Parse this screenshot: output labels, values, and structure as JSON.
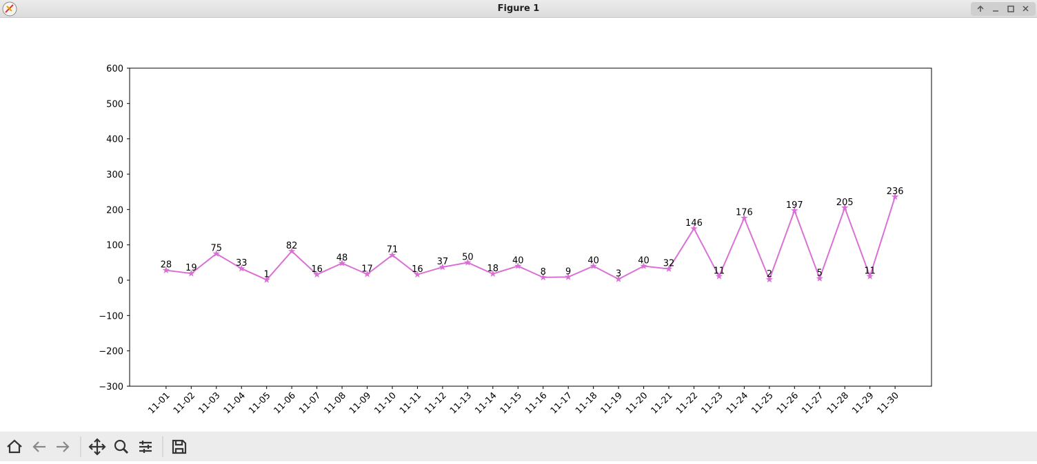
{
  "window": {
    "title": "Figure 1"
  },
  "chart_data": {
    "type": "line",
    "categories": [
      "11-01",
      "11-02",
      "11-03",
      "11-04",
      "11-05",
      "11-06",
      "11-07",
      "11-08",
      "11-09",
      "11-10",
      "11-11",
      "11-12",
      "11-13",
      "11-14",
      "11-15",
      "11-16",
      "11-17",
      "11-18",
      "11-19",
      "11-20",
      "11-21",
      "11-22",
      "11-23",
      "11-24",
      "11-25",
      "11-26",
      "11-27",
      "11-28",
      "11-29",
      "11-30"
    ],
    "values": [
      28,
      19,
      75,
      33,
      1,
      82,
      16,
      48,
      17,
      71,
      16,
      37,
      50,
      18,
      40,
      8,
      9,
      40,
      3,
      40,
      32,
      146,
      11,
      176,
      2,
      197,
      5,
      205,
      11,
      236
    ],
    "color": "#da70d6",
    "marker": "star",
    "ylim": [
      -300,
      600
    ],
    "yticks": [
      {
        "value": -300,
        "label": "−300"
      },
      {
        "value": -200,
        "label": "−200"
      },
      {
        "value": -100,
        "label": "−100"
      },
      0,
      100,
      200,
      300,
      400,
      500,
      600
    ],
    "grid": false
  }
}
